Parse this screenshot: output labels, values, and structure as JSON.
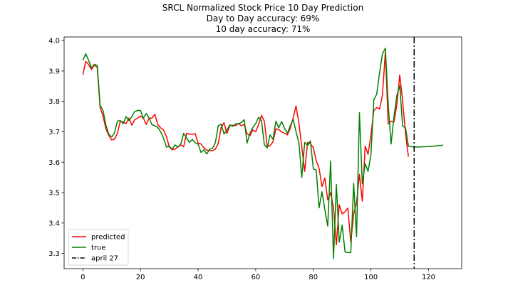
{
  "chart_data": {
    "type": "line",
    "title": "SRCL Normalized Stock Price 10 Day Prediction",
    "subtitle_lines": [
      "Day to Day accuracy: 69%",
      "10 day accuracy: 71%"
    ],
    "xlabel": "",
    "ylabel": "",
    "xlim": [
      -6.5,
      131.5
    ],
    "ylim": [
      3.25,
      4.012
    ],
    "xticks": [
      0,
      20,
      40,
      60,
      80,
      100,
      120
    ],
    "yticks": [
      3.3,
      3.4,
      3.5,
      3.6,
      3.7,
      3.8,
      3.9,
      4.0
    ],
    "grid": false,
    "legend": {
      "placement": "lower-left",
      "entries": [
        "predicted",
        "true",
        "april 27"
      ]
    },
    "colors": {
      "predicted": "#ff0000",
      "true": "#008000",
      "marker": "#000000"
    },
    "vertical_line": {
      "name": "april 27",
      "x": 115,
      "style": "dash-dot"
    },
    "series": [
      {
        "name": "predicted",
        "x_start": 0,
        "values": [
          3.887,
          3.932,
          3.921,
          3.905,
          3.92,
          3.911,
          3.78,
          3.752,
          3.71,
          3.688,
          3.673,
          3.676,
          3.695,
          3.735,
          3.732,
          3.727,
          3.745,
          3.722,
          3.74,
          3.745,
          3.752,
          3.745,
          3.724,
          3.745,
          3.745,
          3.758,
          3.724,
          3.713,
          3.706,
          3.685,
          3.65,
          3.641,
          3.643,
          3.65,
          3.657,
          3.651,
          3.695,
          3.692,
          3.692,
          3.694,
          3.663,
          3.66,
          3.648,
          3.64,
          3.638,
          3.638,
          3.643,
          3.662,
          3.714,
          3.73,
          3.694,
          3.72,
          3.722,
          3.72,
          3.727,
          3.72,
          3.724,
          3.694,
          3.687,
          3.706,
          3.7,
          3.724,
          3.754,
          3.735,
          3.651,
          3.655,
          3.667,
          3.71,
          3.707,
          3.7,
          3.695,
          3.69,
          3.712,
          3.745,
          3.785,
          3.728,
          3.65,
          3.57,
          3.665,
          3.66,
          3.648,
          3.605,
          3.58,
          3.52,
          3.548,
          3.476,
          3.5,
          3.45,
          3.328,
          3.46,
          3.43,
          3.437,
          3.449,
          3.337,
          3.43,
          3.467,
          3.56,
          3.472,
          3.653,
          3.626,
          3.69,
          3.77,
          3.78,
          3.775,
          3.82,
          3.963,
          3.726,
          3.735,
          3.733,
          3.79,
          3.887,
          3.8,
          3.695,
          3.618
        ]
      },
      {
        "name": "true",
        "x_start": 0,
        "values": [
          3.935,
          3.957,
          3.935,
          3.91,
          3.922,
          3.918,
          3.787,
          3.77,
          3.722,
          3.692,
          3.683,
          3.697,
          3.735,
          3.737,
          3.727,
          3.75,
          3.737,
          3.75,
          3.767,
          3.77,
          3.77,
          3.745,
          3.76,
          3.745,
          3.723,
          3.72,
          3.715,
          3.7,
          3.68,
          3.65,
          3.652,
          3.643,
          3.657,
          3.65,
          3.66,
          3.695,
          3.68,
          3.665,
          3.675,
          3.664,
          3.66,
          3.632,
          3.641,
          3.627,
          3.643,
          3.645,
          3.665,
          3.72,
          3.725,
          3.693,
          3.705,
          3.723,
          3.718,
          3.726,
          3.727,
          3.73,
          3.74,
          3.663,
          3.695,
          3.714,
          3.727,
          3.748,
          3.737,
          3.658,
          3.647,
          3.69,
          3.675,
          3.735,
          3.713,
          3.734,
          3.712,
          3.695,
          3.72,
          3.741,
          3.7,
          3.663,
          3.55,
          3.665,
          3.655,
          3.67,
          3.578,
          3.574,
          3.45,
          3.503,
          3.444,
          3.39,
          3.604,
          3.283,
          3.527,
          3.337,
          3.393,
          3.305,
          3.303,
          3.303,
          3.53,
          3.355,
          3.763,
          3.529,
          3.595,
          3.57,
          3.625,
          3.805,
          3.824,
          3.895,
          3.957,
          3.975,
          3.789,
          3.66,
          3.75,
          3.82,
          3.852,
          3.719,
          3.713,
          3.653,
          3.651,
          3.65,
          3.65,
          3.65,
          3.651,
          3.651,
          3.652,
          3.652,
          3.653,
          3.654,
          3.655,
          3.656
        ]
      }
    ]
  }
}
